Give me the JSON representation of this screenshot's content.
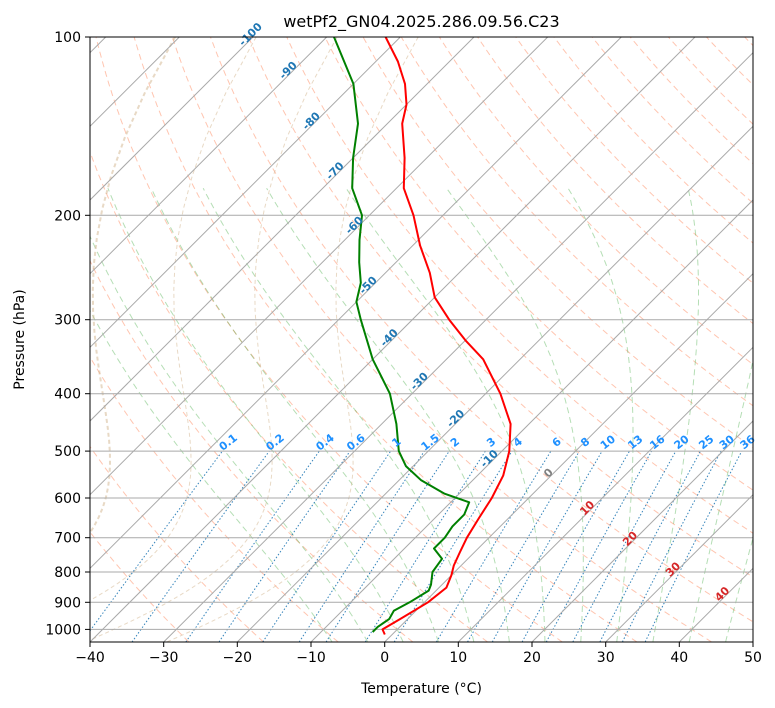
{
  "chart_data": {
    "type": "skew-t",
    "title": "wetPf2_GN04.2025.286.09.56.C23",
    "xlabel": "Temperature (°C)",
    "ylabel": "Pressure (hPa)",
    "xlim": [
      -40,
      50
    ],
    "ylim": [
      1050,
      100
    ],
    "x_ticks": [
      -40,
      -30,
      -20,
      -10,
      0,
      10,
      20,
      30,
      40,
      50
    ],
    "x_tick_labels": [
      "−40",
      "−30",
      "−20",
      "−10",
      "0",
      "10",
      "20",
      "30",
      "40",
      "50"
    ],
    "y_ticks": [
      100,
      200,
      300,
      400,
      500,
      600,
      700,
      800,
      900,
      1000
    ],
    "y_tick_labels": [
      "100",
      "200",
      "300",
      "400",
      "500",
      "600",
      "700",
      "800",
      "900",
      "1000"
    ],
    "grid": true,
    "series": [
      {
        "name": "Temperature",
        "color": "#ff0000",
        "points": [
          [
            1020,
            -1
          ],
          [
            1000,
            -2
          ],
          [
            960,
            -1
          ],
          [
            900,
            0.5
          ],
          [
            850,
            1
          ],
          [
            810,
            0
          ],
          [
            780,
            -1
          ],
          [
            740,
            -2
          ],
          [
            700,
            -3
          ],
          [
            650,
            -4
          ],
          [
            600,
            -5
          ],
          [
            550,
            -6.5
          ],
          [
            500,
            -9
          ],
          [
            450,
            -12.5
          ],
          [
            400,
            -18
          ],
          [
            350,
            -25
          ],
          [
            325,
            -30
          ],
          [
            300,
            -35
          ],
          [
            275,
            -40
          ],
          [
            250,
            -44
          ],
          [
            225,
            -49
          ],
          [
            200,
            -54
          ],
          [
            180,
            -59
          ],
          [
            160,
            -63
          ],
          [
            140,
            -68
          ],
          [
            130,
            -70
          ],
          [
            120,
            -73
          ],
          [
            110,
            -77
          ],
          [
            100,
            -82
          ]
        ]
      },
      {
        "name": "Dewpoint",
        "color": "#008000",
        "points": [
          [
            1010,
            -3
          ],
          [
            990,
            -3
          ],
          [
            960,
            -2.5
          ],
          [
            930,
            -3
          ],
          [
            900,
            -2
          ],
          [
            860,
            -1
          ],
          [
            840,
            -1.5
          ],
          [
            800,
            -3
          ],
          [
            760,
            -3.5
          ],
          [
            730,
            -6
          ],
          [
            700,
            -6
          ],
          [
            670,
            -6.5
          ],
          [
            640,
            -6.5
          ],
          [
            610,
            -7.5
          ],
          [
            590,
            -12
          ],
          [
            560,
            -17
          ],
          [
            530,
            -21
          ],
          [
            500,
            -24
          ],
          [
            450,
            -28
          ],
          [
            400,
            -33
          ],
          [
            350,
            -40
          ],
          [
            300,
            -47
          ],
          [
            280,
            -50
          ],
          [
            260,
            -52
          ],
          [
            240,
            -55
          ],
          [
            220,
            -58
          ],
          [
            200,
            -61
          ],
          [
            180,
            -66
          ],
          [
            160,
            -70
          ],
          [
            140,
            -74
          ],
          [
            120,
            -80
          ],
          [
            100,
            -89
          ]
        ]
      }
    ],
    "dry_adiabats": [
      -30,
      -20,
      -10,
      0,
      10,
      20,
      30,
      40,
      50,
      60,
      70,
      80,
      90,
      100,
      110,
      120,
      130,
      140,
      150,
      160,
      170,
      180,
      190,
      200
    ],
    "moist_adiabats": [
      -10,
      -5,
      0,
      5,
      10,
      15,
      20,
      25,
      30,
      35,
      40,
      45
    ],
    "mixing_ratio_values": [
      0.1,
      0.2,
      0.4,
      0.6,
      1,
      1.5,
      2,
      3,
      4,
      6,
      8,
      10,
      13,
      16,
      20,
      25,
      30,
      36
    ],
    "mixing_ratio_labels": [
      "0.1",
      "0.2",
      "0.4",
      "0.6",
      "1",
      "1.5",
      "2",
      "3",
      "4",
      "6",
      "8",
      "10",
      "13",
      "16",
      "20",
      "25",
      "30",
      "36"
    ],
    "isotherm_labels_blue": [
      {
        "t": -100,
        "p": 100,
        "text": "-100"
      },
      {
        "t": -90,
        "p": 115,
        "text": "-90"
      },
      {
        "t": -80,
        "p": 140,
        "text": "-80"
      },
      {
        "t": -70,
        "p": 170,
        "text": "-70"
      },
      {
        "t": -60,
        "p": 210,
        "text": "-60"
      },
      {
        "t": -50,
        "p": 265,
        "text": "-50"
      },
      {
        "t": -40,
        "p": 325,
        "text": "-40"
      },
      {
        "t": -30,
        "p": 385,
        "text": "-30"
      },
      {
        "t": -20,
        "p": 445,
        "text": "-20"
      },
      {
        "t": -10,
        "p": 520,
        "text": "-10"
      }
    ],
    "isotherm_labels_other": [
      {
        "t": 0,
        "p": 550,
        "text": "0",
        "color": "#808080"
      },
      {
        "t": 10,
        "p": 630,
        "text": "10",
        "color": "#d62728"
      },
      {
        "t": 20,
        "p": 710,
        "text": "20",
        "color": "#d62728"
      },
      {
        "t": 30,
        "p": 800,
        "text": "30",
        "color": "#d62728"
      },
      {
        "t": 40,
        "p": 880,
        "text": "40",
        "color": "#d62728"
      }
    ],
    "colors": {
      "isotherm": "#a9a9a9",
      "dry_adiabat": "#ff7f50",
      "moist_adiabat": "#2ca02c",
      "mixing_ratio": "#1f77b4",
      "mixing_label": "#1e90ff",
      "isotherm_label": "#1f77b4",
      "curved": "#d2b48c"
    }
  }
}
